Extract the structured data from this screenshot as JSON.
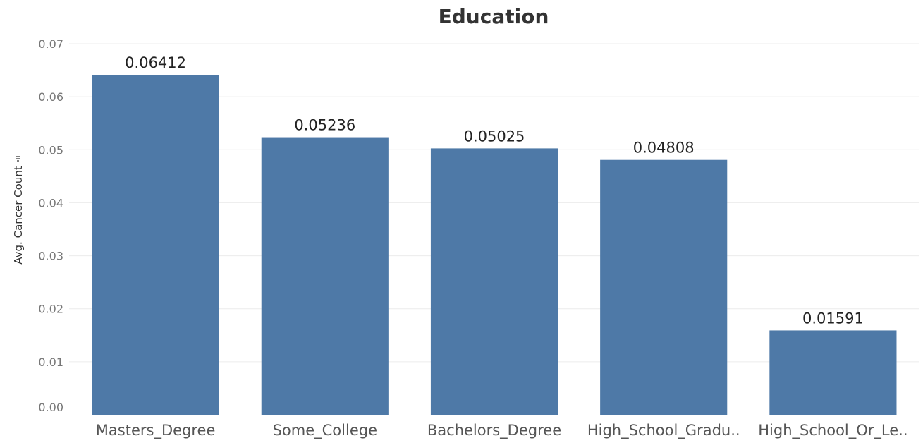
{
  "chart_data": {
    "type": "bar",
    "title": "Education",
    "xlabel": "",
    "ylabel": "Avg. Cancer Count",
    "categories": [
      "Masters_Degree",
      "Some_College",
      "Bachelors_Degree",
      "High_School_Gradu..",
      "High_School_Or_Le.."
    ],
    "values": [
      0.06412,
      0.05236,
      0.05025,
      0.04808,
      0.01591
    ],
    "data_labels": [
      "0.06412",
      "0.05236",
      "0.05025",
      "0.04808",
      "0.01591"
    ],
    "yticks": [
      0.0,
      0.01,
      0.02,
      0.03,
      0.04,
      0.05,
      0.06,
      0.07
    ],
    "ytick_labels": [
      "0.00",
      "0.01",
      "0.02",
      "0.03",
      "0.04",
      "0.05",
      "0.06",
      "0.07"
    ],
    "ylim": [
      0,
      0.07
    ],
    "grid": true,
    "bar_color": "#4e79a7"
  }
}
